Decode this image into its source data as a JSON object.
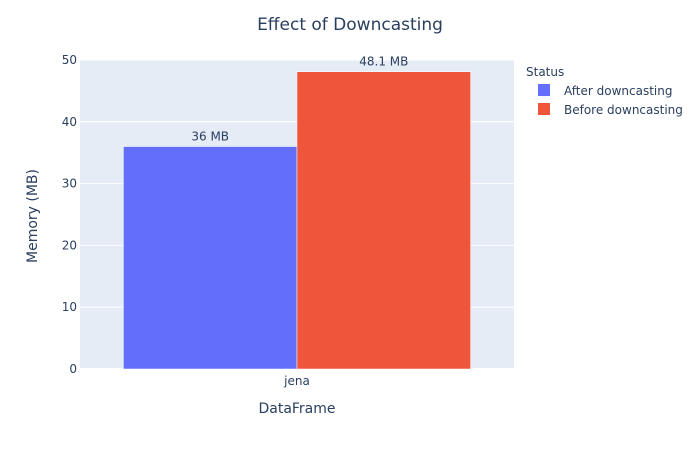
{
  "chart_data": {
    "type": "bar",
    "title": "Effect of Downcasting",
    "xlabel": "DataFrame",
    "ylabel": "Memory (MB)",
    "categories": [
      "jena"
    ],
    "ylim": [
      0,
      50
    ],
    "yticks": [
      0,
      10,
      20,
      30,
      40,
      50
    ],
    "grid": true,
    "barmode": "group",
    "legend": {
      "title": "Status",
      "placement": "top-right"
    },
    "series": [
      {
        "name": "After downcasting",
        "values": [
          36
        ],
        "labels": [
          "36 MB"
        ],
        "color": "#636efa"
      },
      {
        "name": "Before downcasting",
        "values": [
          48.1
        ],
        "labels": [
          "48.1 MB"
        ],
        "color": "#ef553b"
      }
    ],
    "plot_background": "#e5ecf6",
    "text_color": "#2a3f5f"
  }
}
